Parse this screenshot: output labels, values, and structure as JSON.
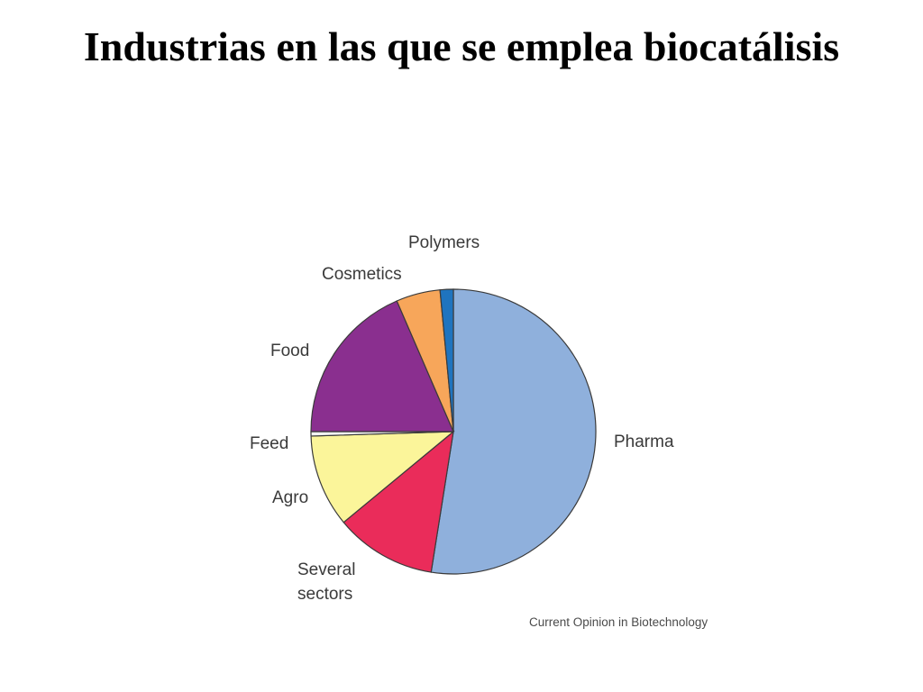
{
  "slide": {
    "title": "Industrias en las que se emplea biocatálisis"
  },
  "chart_data": {
    "type": "pie",
    "title": "",
    "slices": [
      {
        "label": "Pharma",
        "lines": [
          "Pharma"
        ],
        "value": 52.5,
        "color": "#8fb0dc"
      },
      {
        "label": "Several sectors",
        "lines": [
          "Several",
          "sectors"
        ],
        "value": 11.5,
        "color": "#ea2c5a"
      },
      {
        "label": "Agro",
        "lines": [
          "Agro"
        ],
        "value": 10.5,
        "color": "#fbf59a"
      },
      {
        "label": "Feed",
        "lines": [
          "Feed"
        ],
        "value": 0.5,
        "color": "#f2f2f2"
      },
      {
        "label": "Food",
        "lines": [
          "Food"
        ],
        "value": 18.5,
        "color": "#8a2f8f"
      },
      {
        "label": "Cosmetics",
        "lines": [
          "Cosmetics"
        ],
        "value": 5.0,
        "color": "#f7a65a"
      },
      {
        "label": "Polymers",
        "lines": [
          "Polymers"
        ],
        "value": 1.5,
        "color": "#1f74bf"
      }
    ],
    "start_angle_deg": 0,
    "direction": "clockwise",
    "source": "Current Opinion in Biotechnology"
  }
}
